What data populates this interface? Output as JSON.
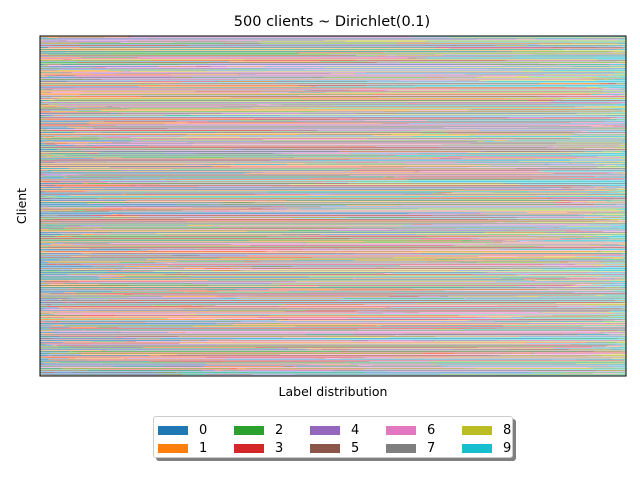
{
  "chart_data": {
    "type": "bar",
    "orientation": "horizontal-stacked",
    "title": "500 clients ~ Dirichlet(0.1)",
    "xlabel": "Label distribution",
    "ylabel": "Client",
    "n_clients": 500,
    "dirichlet_alpha": 0.1,
    "xlim": [
      0,
      1
    ],
    "ylim": [
      0,
      500
    ],
    "grid": false,
    "show_ticks": false,
    "legend": {
      "placement": "bottom-center",
      "ncol": 5,
      "entries": [
        {
          "label": "0",
          "color": "#1f77b4"
        },
        {
          "label": "1",
          "color": "#ff7f0e"
        },
        {
          "label": "2",
          "color": "#2ca02c"
        },
        {
          "label": "3",
          "color": "#d62728"
        },
        {
          "label": "4",
          "color": "#9467bd"
        },
        {
          "label": "5",
          "color": "#8c564b"
        },
        {
          "label": "6",
          "color": "#e377c2"
        },
        {
          "label": "7",
          "color": "#7f7f7f"
        },
        {
          "label": "8",
          "color": "#bcbd22"
        },
        {
          "label": "9",
          "color": "#17becf"
        }
      ]
    }
  }
}
